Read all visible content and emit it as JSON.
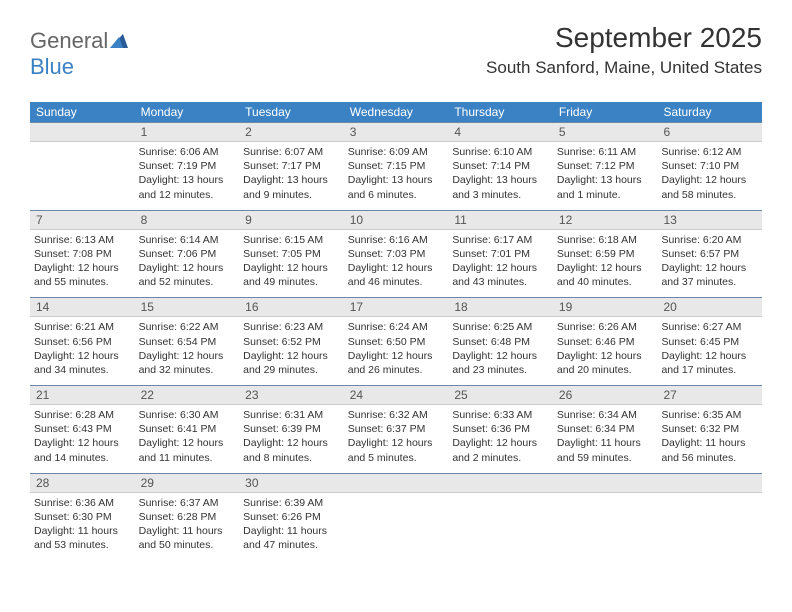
{
  "brand": {
    "part1": "General",
    "part2": "Blue"
  },
  "title": "September 2025",
  "location": "South Sanford, Maine, United States",
  "colors": {
    "header_bg": "#3b82c4",
    "header_text": "#ffffff",
    "daynum_bg": "#e8e8e8",
    "row_border": "#6b88a8",
    "body_text": "#333333",
    "logo_gray": "#666666",
    "logo_blue": "#3b82c4"
  },
  "fonts": {
    "title_size_pt": 21,
    "location_size_pt": 13,
    "header_size_pt": 9,
    "cell_size_pt": 8
  },
  "day_headers": [
    "Sunday",
    "Monday",
    "Tuesday",
    "Wednesday",
    "Thursday",
    "Friday",
    "Saturday"
  ],
  "weeks": [
    {
      "nums": [
        "",
        "1",
        "2",
        "3",
        "4",
        "5",
        "6"
      ],
      "cells": [
        {
          "sunrise": "",
          "sunset": "",
          "daylight": ""
        },
        {
          "sunrise": "Sunrise: 6:06 AM",
          "sunset": "Sunset: 7:19 PM",
          "daylight": "Daylight: 13 hours and 12 minutes."
        },
        {
          "sunrise": "Sunrise: 6:07 AM",
          "sunset": "Sunset: 7:17 PM",
          "daylight": "Daylight: 13 hours and 9 minutes."
        },
        {
          "sunrise": "Sunrise: 6:09 AM",
          "sunset": "Sunset: 7:15 PM",
          "daylight": "Daylight: 13 hours and 6 minutes."
        },
        {
          "sunrise": "Sunrise: 6:10 AM",
          "sunset": "Sunset: 7:14 PM",
          "daylight": "Daylight: 13 hours and 3 minutes."
        },
        {
          "sunrise": "Sunrise: 6:11 AM",
          "sunset": "Sunset: 7:12 PM",
          "daylight": "Daylight: 13 hours and 1 minute."
        },
        {
          "sunrise": "Sunrise: 6:12 AM",
          "sunset": "Sunset: 7:10 PM",
          "daylight": "Daylight: 12 hours and 58 minutes."
        }
      ]
    },
    {
      "nums": [
        "7",
        "8",
        "9",
        "10",
        "11",
        "12",
        "13"
      ],
      "cells": [
        {
          "sunrise": "Sunrise: 6:13 AM",
          "sunset": "Sunset: 7:08 PM",
          "daylight": "Daylight: 12 hours and 55 minutes."
        },
        {
          "sunrise": "Sunrise: 6:14 AM",
          "sunset": "Sunset: 7:06 PM",
          "daylight": "Daylight: 12 hours and 52 minutes."
        },
        {
          "sunrise": "Sunrise: 6:15 AM",
          "sunset": "Sunset: 7:05 PM",
          "daylight": "Daylight: 12 hours and 49 minutes."
        },
        {
          "sunrise": "Sunrise: 6:16 AM",
          "sunset": "Sunset: 7:03 PM",
          "daylight": "Daylight: 12 hours and 46 minutes."
        },
        {
          "sunrise": "Sunrise: 6:17 AM",
          "sunset": "Sunset: 7:01 PM",
          "daylight": "Daylight: 12 hours and 43 minutes."
        },
        {
          "sunrise": "Sunrise: 6:18 AM",
          "sunset": "Sunset: 6:59 PM",
          "daylight": "Daylight: 12 hours and 40 minutes."
        },
        {
          "sunrise": "Sunrise: 6:20 AM",
          "sunset": "Sunset: 6:57 PM",
          "daylight": "Daylight: 12 hours and 37 minutes."
        }
      ]
    },
    {
      "nums": [
        "14",
        "15",
        "16",
        "17",
        "18",
        "19",
        "20"
      ],
      "cells": [
        {
          "sunrise": "Sunrise: 6:21 AM",
          "sunset": "Sunset: 6:56 PM",
          "daylight": "Daylight: 12 hours and 34 minutes."
        },
        {
          "sunrise": "Sunrise: 6:22 AM",
          "sunset": "Sunset: 6:54 PM",
          "daylight": "Daylight: 12 hours and 32 minutes."
        },
        {
          "sunrise": "Sunrise: 6:23 AM",
          "sunset": "Sunset: 6:52 PM",
          "daylight": "Daylight: 12 hours and 29 minutes."
        },
        {
          "sunrise": "Sunrise: 6:24 AM",
          "sunset": "Sunset: 6:50 PM",
          "daylight": "Daylight: 12 hours and 26 minutes."
        },
        {
          "sunrise": "Sunrise: 6:25 AM",
          "sunset": "Sunset: 6:48 PM",
          "daylight": "Daylight: 12 hours and 23 minutes."
        },
        {
          "sunrise": "Sunrise: 6:26 AM",
          "sunset": "Sunset: 6:46 PM",
          "daylight": "Daylight: 12 hours and 20 minutes."
        },
        {
          "sunrise": "Sunrise: 6:27 AM",
          "sunset": "Sunset: 6:45 PM",
          "daylight": "Daylight: 12 hours and 17 minutes."
        }
      ]
    },
    {
      "nums": [
        "21",
        "22",
        "23",
        "24",
        "25",
        "26",
        "27"
      ],
      "cells": [
        {
          "sunrise": "Sunrise: 6:28 AM",
          "sunset": "Sunset: 6:43 PM",
          "daylight": "Daylight: 12 hours and 14 minutes."
        },
        {
          "sunrise": "Sunrise: 6:30 AM",
          "sunset": "Sunset: 6:41 PM",
          "daylight": "Daylight: 12 hours and 11 minutes."
        },
        {
          "sunrise": "Sunrise: 6:31 AM",
          "sunset": "Sunset: 6:39 PM",
          "daylight": "Daylight: 12 hours and 8 minutes."
        },
        {
          "sunrise": "Sunrise: 6:32 AM",
          "sunset": "Sunset: 6:37 PM",
          "daylight": "Daylight: 12 hours and 5 minutes."
        },
        {
          "sunrise": "Sunrise: 6:33 AM",
          "sunset": "Sunset: 6:36 PM",
          "daylight": "Daylight: 12 hours and 2 minutes."
        },
        {
          "sunrise": "Sunrise: 6:34 AM",
          "sunset": "Sunset: 6:34 PM",
          "daylight": "Daylight: 11 hours and 59 minutes."
        },
        {
          "sunrise": "Sunrise: 6:35 AM",
          "sunset": "Sunset: 6:32 PM",
          "daylight": "Daylight: 11 hours and 56 minutes."
        }
      ]
    },
    {
      "nums": [
        "28",
        "29",
        "30",
        "",
        "",
        "",
        ""
      ],
      "cells": [
        {
          "sunrise": "Sunrise: 6:36 AM",
          "sunset": "Sunset: 6:30 PM",
          "daylight": "Daylight: 11 hours and 53 minutes."
        },
        {
          "sunrise": "Sunrise: 6:37 AM",
          "sunset": "Sunset: 6:28 PM",
          "daylight": "Daylight: 11 hours and 50 minutes."
        },
        {
          "sunrise": "Sunrise: 6:39 AM",
          "sunset": "Sunset: 6:26 PM",
          "daylight": "Daylight: 11 hours and 47 minutes."
        },
        {
          "sunrise": "",
          "sunset": "",
          "daylight": ""
        },
        {
          "sunrise": "",
          "sunset": "",
          "daylight": ""
        },
        {
          "sunrise": "",
          "sunset": "",
          "daylight": ""
        },
        {
          "sunrise": "",
          "sunset": "",
          "daylight": ""
        }
      ]
    }
  ]
}
